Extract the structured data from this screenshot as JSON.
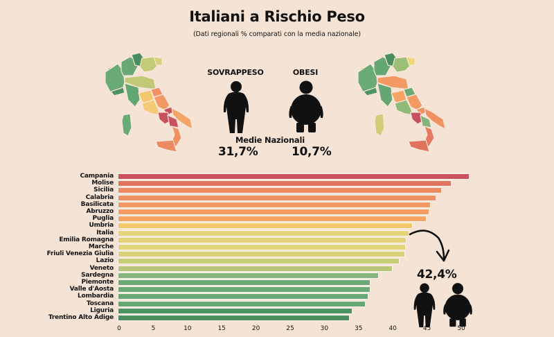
{
  "header": {
    "title": "Italiani a Rischio Peso",
    "subtitle": "(Dati regionali % comparati con la media nazionale)"
  },
  "categories": {
    "overweight": {
      "label": "SOVRAPPESO",
      "icon": "overweight-person-icon"
    },
    "obese": {
      "label": "OBESI",
      "icon": "obese-person-icon"
    }
  },
  "national": {
    "label": "Medie Nazionali",
    "overweight_value": "31,7%",
    "obese_value": "10,7%"
  },
  "maps": {
    "left": {
      "icon": "italy-map-overweight-icon"
    },
    "right": {
      "icon": "italy-map-obese-icon"
    }
  },
  "highlight": {
    "value": "42,4%",
    "icon": "curved-arrow-icon"
  },
  "background_color": "#f5e4d6",
  "chart_data": {
    "type": "bar",
    "orientation": "horizontal",
    "title": "Italiani a Rischio Peso",
    "subtitle": "(Dati regionali % comparati con la media nazionale)",
    "xlabel": "",
    "ylabel": "",
    "xlim": [
      0,
      52
    ],
    "xticks": [
      0,
      5,
      10,
      15,
      20,
      25,
      30,
      35,
      40,
      45,
      50
    ],
    "grid": false,
    "legend": "none",
    "annotation": "42,4% (Italia)",
    "categories": [
      "Campania",
      "Molise",
      "Sicilia",
      "Calabria",
      "Basilicata",
      "Abruzzo",
      "Puglia",
      "Umbria",
      "Italia",
      "Emilia Romagna",
      "Marche",
      "Friuli Venezia Giulia",
      "Lazio",
      "Veneto",
      "Sardegna",
      "Piemonte",
      "Valle d'Aosta",
      "Lombardia",
      "Toscana",
      "Liguria",
      "Trentino Alto Adige"
    ],
    "values": [
      51.2,
      48.6,
      47.2,
      46.4,
      45.5,
      45.3,
      44.9,
      42.9,
      42.4,
      42.0,
      41.9,
      41.8,
      41.0,
      40.0,
      38.0,
      36.7,
      36.7,
      36.4,
      36.0,
      34.1,
      33.7
    ],
    "colors": [
      "#c9505e",
      "#e0735f",
      "#ec8a62",
      "#f09163",
      "#f39a64",
      "#f49c64",
      "#f5a463",
      "#f2c76e",
      "#e4d379",
      "#e3d378",
      "#e1d379",
      "#dad178",
      "#c6cc77",
      "#b7c677",
      "#83b57c",
      "#6aaa77",
      "#6aaa77",
      "#68a876",
      "#64a674",
      "#4e9363",
      "#4a8e60"
    ]
  }
}
